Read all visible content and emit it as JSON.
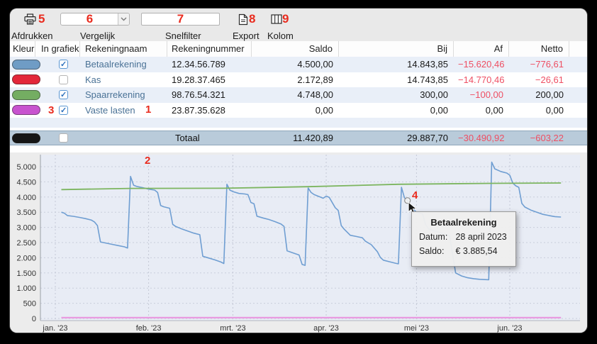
{
  "toolbar": {
    "print_label": "Afdrukken",
    "compare_label": "Vergelijk",
    "quickfilter_label": "Snelfilter",
    "export_label": "Export",
    "column_label": "Kolom"
  },
  "annotations": {
    "color": "#e92b1e",
    "n1": "1",
    "n2": "2",
    "n3": "3",
    "n4": "4",
    "n5": "5",
    "n6": "6",
    "n7": "7",
    "n8": "8",
    "n9": "9"
  },
  "table": {
    "columns": [
      "Kleur",
      "In grafiek",
      "Rekeningnaam",
      "Rekeningnummer",
      "Saldo",
      "Bij",
      "Af",
      "Netto"
    ],
    "rows": [
      {
        "color": "#6f9cc5",
        "checked": true,
        "name": "Betaalrekening",
        "number": "12.34.56.789",
        "saldo": "4.500,00",
        "bij": "14.843,85",
        "af": "−15.620,46",
        "netto": "−776,61"
      },
      {
        "color": "#e3273a",
        "checked": false,
        "name": "Kas",
        "number": "19.28.37.465",
        "saldo": "2.172,89",
        "bij": "14.743,85",
        "af": "−14.770,46",
        "netto": "−26,61"
      },
      {
        "color": "#74ad62",
        "checked": true,
        "name": "Spaarrekening",
        "number": "98.76.54.321",
        "saldo": "4.748,00",
        "bij": "300,00",
        "af": "−100,00",
        "netto": "200,00"
      },
      {
        "color": "#c853cf",
        "checked": true,
        "name": "Vaste lasten",
        "number": "23.87.35.628",
        "saldo": "0,00",
        "bij": "0,00",
        "af": "0,00",
        "netto": "0,00"
      }
    ],
    "total": {
      "color": "#151515",
      "checked": false,
      "label": "Totaal",
      "saldo": "11.420,89",
      "bij": "29.887,70",
      "af": "−30.490,92",
      "netto": "−603,22"
    }
  },
  "chart_data": {
    "type": "line",
    "x_axis": {
      "tick_labels": [
        "jan. '23",
        "feb. '23",
        "mrt. '23",
        "apr. '23",
        "mei '23",
        "jun. '23"
      ],
      "tick_days": [
        0,
        31,
        59,
        90,
        120,
        151
      ]
    },
    "y_axis": {
      "min": 0,
      "max": 5000,
      "step": 500,
      "tick_labels": [
        "0",
        "500",
        "1.000",
        "1.500",
        "2.000",
        "2.500",
        "3.000",
        "3.500",
        "4.000",
        "4.500",
        "5.000"
      ]
    },
    "grid": true,
    "series": [
      {
        "name": "Betaalrekening",
        "color": "#6f9ed2",
        "width": 1.6,
        "points": [
          [
            2,
            3500
          ],
          [
            3,
            3470
          ],
          [
            4,
            3390
          ],
          [
            6,
            3365
          ],
          [
            8,
            3330
          ],
          [
            10,
            3290
          ],
          [
            12,
            3240
          ],
          [
            13,
            3180
          ],
          [
            14,
            3060
          ],
          [
            15,
            2520
          ],
          [
            17,
            2480
          ],
          [
            19,
            2440
          ],
          [
            21,
            2400
          ],
          [
            23,
            2360
          ],
          [
            24,
            2320
          ],
          [
            25,
            4680
          ],
          [
            26,
            4390
          ],
          [
            27,
            4350
          ],
          [
            29,
            4310
          ],
          [
            31,
            4260
          ],
          [
            33,
            4230
          ],
          [
            34,
            4150
          ],
          [
            35,
            3720
          ],
          [
            36,
            3680
          ],
          [
            38,
            3630
          ],
          [
            39,
            3100
          ],
          [
            40,
            3030
          ],
          [
            42,
            2950
          ],
          [
            44,
            2880
          ],
          [
            46,
            2810
          ],
          [
            48,
            2760
          ],
          [
            49,
            2050
          ],
          [
            51,
            1990
          ],
          [
            53,
            1930
          ],
          [
            55,
            1860
          ],
          [
            56,
            1810
          ],
          [
            57,
            4420
          ],
          [
            58,
            4230
          ],
          [
            59,
            4180
          ],
          [
            61,
            4120
          ],
          [
            63,
            4100
          ],
          [
            64,
            4080
          ],
          [
            65,
            3820
          ],
          [
            66,
            3780
          ],
          [
            67,
            3370
          ],
          [
            69,
            3310
          ],
          [
            71,
            3260
          ],
          [
            73,
            3190
          ],
          [
            75,
            3110
          ],
          [
            76,
            3030
          ],
          [
            77,
            2230
          ],
          [
            79,
            2160
          ],
          [
            81,
            2090
          ],
          [
            82,
            1780
          ],
          [
            83,
            1750
          ],
          [
            84,
            4300
          ],
          [
            85,
            4150
          ],
          [
            86,
            4080
          ],
          [
            88,
            4000
          ],
          [
            89,
            3960
          ],
          [
            90,
            4030
          ],
          [
            91,
            3990
          ],
          [
            93,
            3650
          ],
          [
            94,
            3560
          ],
          [
            95,
            3060
          ],
          [
            96,
            2940
          ],
          [
            98,
            2740
          ],
          [
            100,
            2700
          ],
          [
            102,
            2660
          ],
          [
            103,
            2550
          ],
          [
            105,
            2430
          ],
          [
            107,
            2200
          ],
          [
            108,
            2010
          ],
          [
            109,
            1920
          ],
          [
            111,
            1870
          ],
          [
            113,
            1820
          ],
          [
            114,
            1800
          ],
          [
            115,
            4320
          ],
          [
            116,
            3980
          ],
          [
            117,
            3885.54
          ],
          [
            118,
            3700
          ],
          [
            119,
            3590
          ],
          [
            120,
            3500
          ],
          [
            122,
            3450
          ],
          [
            123,
            3100
          ],
          [
            124,
            2950
          ],
          [
            126,
            2880
          ],
          [
            128,
            2820
          ],
          [
            130,
            2760
          ],
          [
            131,
            2720
          ],
          [
            133,
            1500
          ],
          [
            135,
            1400
          ],
          [
            137,
            1340
          ],
          [
            139,
            1310
          ],
          [
            141,
            1290
          ],
          [
            144,
            1275
          ],
          [
            145,
            5150
          ],
          [
            146,
            4930
          ],
          [
            148,
            4840
          ],
          [
            150,
            4790
          ],
          [
            151,
            4720
          ],
          [
            152,
            4460
          ],
          [
            153,
            4370
          ],
          [
            154,
            4320
          ],
          [
            155,
            3790
          ],
          [
            156,
            3670
          ],
          [
            158,
            3570
          ],
          [
            160,
            3500
          ],
          [
            162,
            3430
          ],
          [
            164,
            3390
          ],
          [
            166,
            3355
          ],
          [
            168,
            3340
          ]
        ]
      },
      {
        "name": "Spaarrekening",
        "color": "#7cb55f",
        "width": 1.8,
        "points": [
          [
            2,
            4245
          ],
          [
            25,
            4285
          ],
          [
            56,
            4290
          ],
          [
            84,
            4340
          ],
          [
            114,
            4420
          ],
          [
            145,
            4450
          ],
          [
            168,
            4462
          ]
        ]
      },
      {
        "name": "Vaste lasten",
        "color": "#e89ae0",
        "width": 2.2,
        "points": [
          [
            2,
            25
          ],
          [
            168,
            25
          ]
        ]
      }
    ],
    "hover": {
      "series": "Betaalrekening",
      "day": 117,
      "value": 3885.54
    },
    "tooltip": {
      "title": "Betaalrekening",
      "rows": [
        {
          "label": "Datum:",
          "value": "28 april 2023"
        },
        {
          "label": "Saldo:",
          "value": "€ 3.885,54"
        }
      ]
    }
  }
}
